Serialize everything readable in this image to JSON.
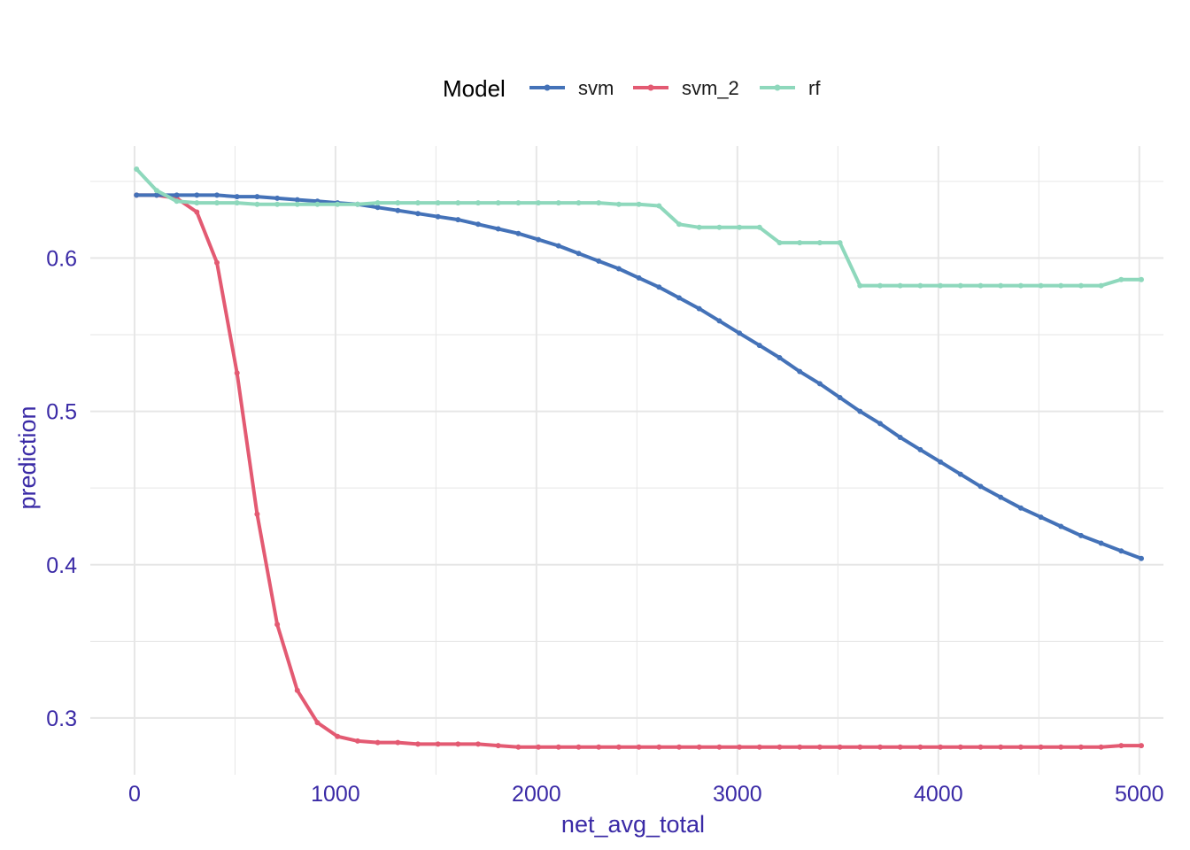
{
  "chart_data": {
    "type": "line",
    "title": "",
    "xlabel": "net_avg_total",
    "ylabel": "prediction",
    "xlim": [
      -220,
      5120
    ],
    "ylim": [
      0.263,
      0.673
    ],
    "x_ticks": [
      0,
      1000,
      2000,
      3000,
      4000,
      5000
    ],
    "x_tick_labels": [
      "0",
      "1000",
      "2000",
      "3000",
      "4000",
      "5000"
    ],
    "y_ticks": [
      0.3,
      0.4,
      0.5,
      0.6
    ],
    "y_tick_labels": [
      "0.3",
      "0.4",
      "0.5",
      "0.6"
    ],
    "grid": true,
    "legend": {
      "title": "Model",
      "position": "top"
    },
    "colors": {
      "axis_text": "#3a2aa6",
      "grid": "#e6e6e6"
    },
    "x": [
      10,
      110,
      210,
      310,
      410,
      510,
      610,
      710,
      810,
      910,
      1010,
      1110,
      1210,
      1310,
      1410,
      1510,
      1610,
      1710,
      1810,
      1910,
      2010,
      2110,
      2210,
      2310,
      2410,
      2510,
      2610,
      2710,
      2810,
      2910,
      3010,
      3110,
      3210,
      3310,
      3410,
      3510,
      3610,
      3710,
      3810,
      3910,
      4010,
      4110,
      4210,
      4310,
      4410,
      4510,
      4610,
      4710,
      4810,
      4910,
      5010
    ],
    "series": [
      {
        "name": "svm",
        "color": "#4472b8",
        "values": [
          0.641,
          0.641,
          0.641,
          0.641,
          0.641,
          0.64,
          0.64,
          0.639,
          0.638,
          0.637,
          0.636,
          0.635,
          0.633,
          0.631,
          0.629,
          0.627,
          0.625,
          0.622,
          0.619,
          0.616,
          0.612,
          0.608,
          0.603,
          0.598,
          0.593,
          0.587,
          0.581,
          0.574,
          0.567,
          0.559,
          0.551,
          0.543,
          0.535,
          0.526,
          0.518,
          0.509,
          0.5,
          0.492,
          0.483,
          0.475,
          0.467,
          0.459,
          0.451,
          0.444,
          0.437,
          0.431,
          0.425,
          0.419,
          0.414,
          0.409,
          0.404
        ]
      },
      {
        "name": "svm_2",
        "color": "#e35a72",
        "values": [
          0.641,
          0.641,
          0.639,
          0.63,
          0.597,
          0.525,
          0.433,
          0.361,
          0.318,
          0.297,
          0.288,
          0.285,
          0.284,
          0.284,
          0.283,
          0.283,
          0.283,
          0.283,
          0.282,
          0.281,
          0.281,
          0.281,
          0.281,
          0.281,
          0.281,
          0.281,
          0.281,
          0.281,
          0.281,
          0.281,
          0.281,
          0.281,
          0.281,
          0.281,
          0.281,
          0.281,
          0.281,
          0.281,
          0.281,
          0.281,
          0.281,
          0.281,
          0.281,
          0.281,
          0.281,
          0.281,
          0.281,
          0.281,
          0.281,
          0.282,
          0.282
        ]
      },
      {
        "name": "rf",
        "color": "#8ed8bc",
        "values": [
          0.658,
          0.644,
          0.637,
          0.636,
          0.636,
          0.636,
          0.635,
          0.635,
          0.635,
          0.635,
          0.635,
          0.635,
          0.636,
          0.636,
          0.636,
          0.636,
          0.636,
          0.636,
          0.636,
          0.636,
          0.636,
          0.636,
          0.636,
          0.636,
          0.635,
          0.635,
          0.634,
          0.622,
          0.62,
          0.62,
          0.62,
          0.62,
          0.61,
          0.61,
          0.61,
          0.61,
          0.582,
          0.582,
          0.582,
          0.582,
          0.582,
          0.582,
          0.582,
          0.582,
          0.582,
          0.582,
          0.582,
          0.582,
          0.582,
          0.586,
          0.586
        ]
      }
    ]
  }
}
